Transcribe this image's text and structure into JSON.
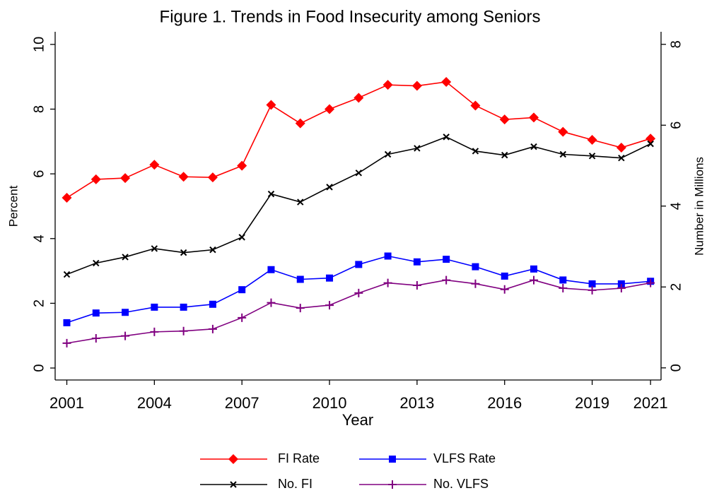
{
  "chart_data": {
    "type": "line",
    "title": "Figure 1.  Trends in Food Insecurity among Seniors",
    "x_label": "Year",
    "y_label": "Percent",
    "y2_label": "Number in Millions",
    "x": [
      2001,
      2002,
      2003,
      2004,
      2005,
      2006,
      2007,
      2008,
      2009,
      2010,
      2011,
      2012,
      2013,
      2014,
      2015,
      2016,
      2017,
      2018,
      2019,
      2020,
      2021
    ],
    "xlim": [
      2000.6,
      2021.36
    ],
    "xticks": [
      2001,
      2004,
      2007,
      2010,
      2013,
      2016,
      2019,
      2021
    ],
    "ylim": [
      -0.37,
      10.39
    ],
    "yticks": [
      0,
      2,
      4,
      6,
      8,
      10
    ],
    "y2lim": [
      -0.3,
      8.31
    ],
    "y2ticks": [
      0,
      2,
      4,
      6,
      8
    ],
    "legend": "bottom",
    "series": [
      {
        "name": "FI Rate",
        "color": "#ff0000",
        "marker": "diamond",
        "values": [
          5.26,
          5.83,
          5.87,
          6.28,
          5.91,
          5.89,
          6.25,
          8.13,
          7.56,
          8.0,
          8.35,
          8.75,
          8.72,
          8.84,
          8.11,
          7.68,
          7.74,
          7.3,
          7.05,
          6.81,
          7.09
        ]
      },
      {
        "name": "VLFS Rate",
        "color": "#0000ff",
        "marker": "square",
        "values": [
          1.4,
          1.7,
          1.72,
          1.88,
          1.88,
          1.97,
          2.42,
          3.04,
          2.74,
          2.78,
          3.2,
          3.46,
          3.28,
          3.36,
          3.13,
          2.84,
          3.06,
          2.72,
          2.6,
          2.6,
          2.68
        ]
      },
      {
        "name": "No. FI",
        "color": "#000000",
        "marker": "x",
        "axis": "y2",
        "values": [
          2.31,
          2.59,
          2.74,
          2.95,
          2.85,
          2.92,
          3.23,
          4.3,
          4.1,
          4.47,
          4.82,
          5.28,
          5.43,
          5.71,
          5.36,
          5.26,
          5.47,
          5.28,
          5.24,
          5.19,
          5.54
        ]
      },
      {
        "name": "No. VLFS",
        "color": "#800080",
        "marker": "plus",
        "axis": "y2",
        "values": [
          0.61,
          0.73,
          0.79,
          0.89,
          0.91,
          0.96,
          1.24,
          1.61,
          1.48,
          1.55,
          1.85,
          2.1,
          2.04,
          2.17,
          2.08,
          1.94,
          2.17,
          1.97,
          1.92,
          1.97,
          2.1
        ]
      }
    ]
  }
}
